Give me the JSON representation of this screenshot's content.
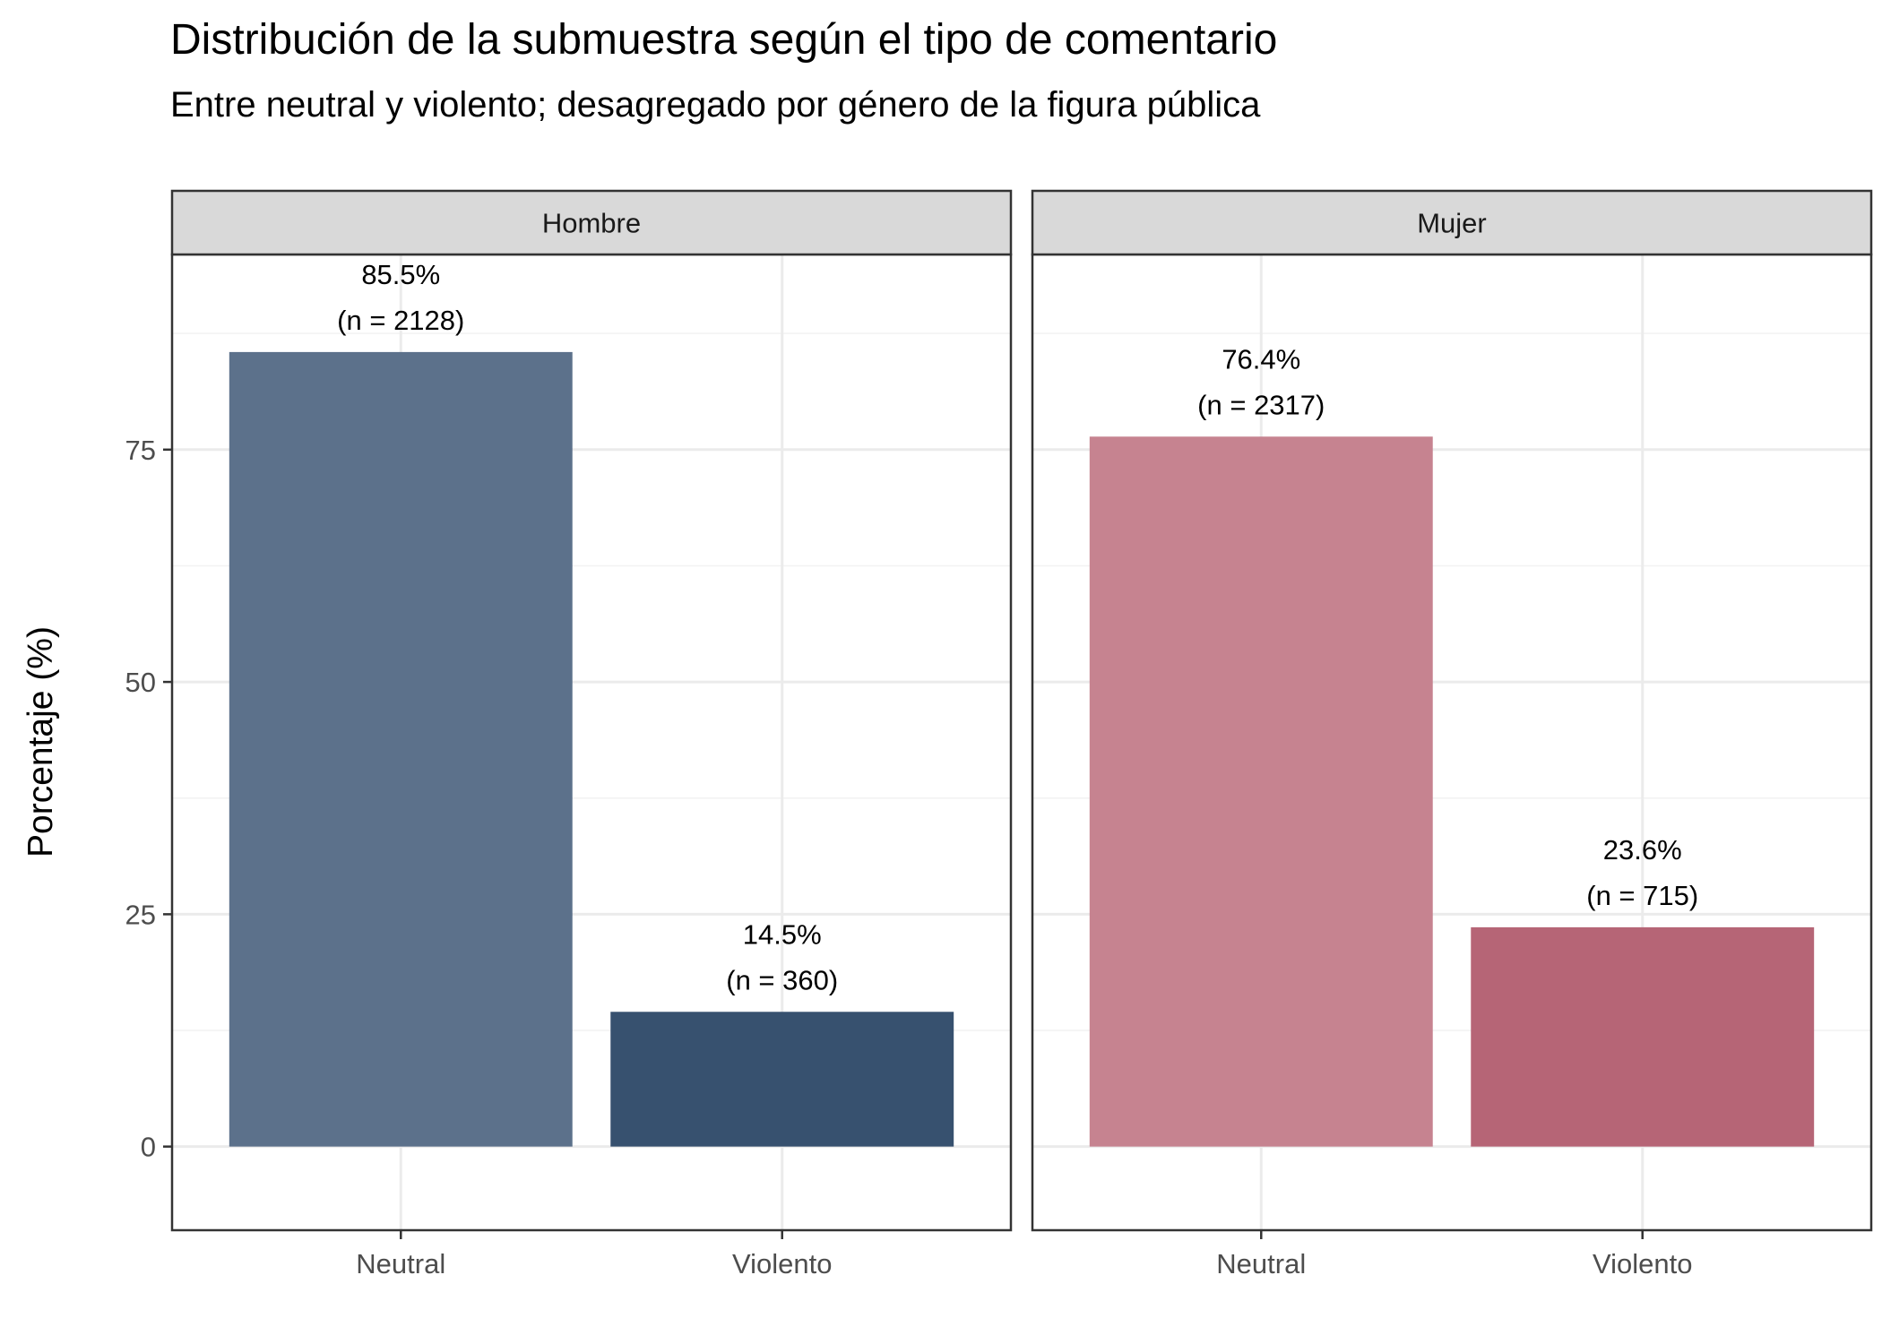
{
  "chart_data": {
    "type": "bar",
    "title": "Distribución de la submuestra según el tipo de comentario",
    "subtitle": "Entre neutral y violento; desagregado por género de la figura pública",
    "ylabel": "Porcentaje (%)",
    "xlabel": "",
    "ylim": [
      -9,
      96
    ],
    "yticks": [
      0,
      25,
      50,
      75
    ],
    "categories": [
      "Neutral",
      "Violento"
    ],
    "grid": true,
    "legend": "none",
    "facets": [
      {
        "name": "Hombre",
        "values": [
          85.5,
          14.5
        ],
        "labels": [
          {
            "pct": "85.5%",
            "n": "(n = 2128)"
          },
          {
            "pct": "14.5%",
            "n": "(n = 360)"
          }
        ],
        "colors": [
          "#5c718b",
          "#37516f"
        ]
      },
      {
        "name": "Mujer",
        "values": [
          76.4,
          23.6
        ],
        "labels": [
          {
            "pct": "76.4%",
            "n": "(n = 2317)"
          },
          {
            "pct": "23.6%",
            "n": "(n = 715)"
          }
        ],
        "colors": [
          "#c68390",
          "#b66576"
        ]
      }
    ]
  }
}
